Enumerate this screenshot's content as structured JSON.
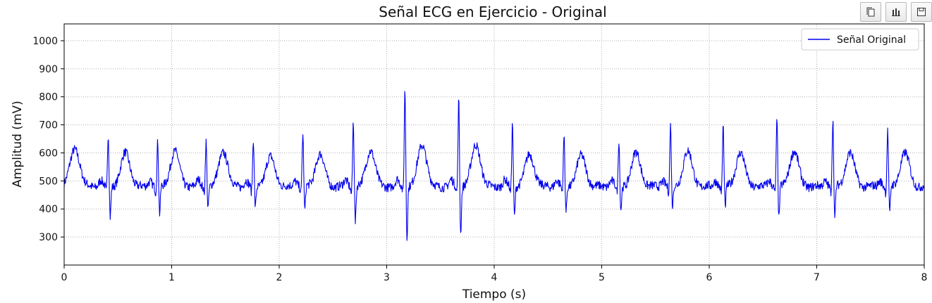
{
  "toolbar": {
    "icons": [
      "copy-icon",
      "chart-icon",
      "save-icon"
    ]
  },
  "chart_data": {
    "type": "line",
    "title": "Señal ECG en Ejercicio - Original",
    "xlabel": "Tiempo (s)",
    "ylabel": "Amplitud (mV)",
    "xlim": [
      0,
      8
    ],
    "ylim": [
      200,
      1060
    ],
    "xticks": [
      0,
      1,
      2,
      3,
      4,
      5,
      6,
      7,
      8
    ],
    "yticks": [
      300,
      400,
      500,
      600,
      700,
      800,
      900,
      1000
    ],
    "grid": true,
    "legend": {
      "position": "top-right",
      "entries": [
        "Señal Original"
      ]
    },
    "series": [
      {
        "name": "Señal Original",
        "color": "#0000ee",
        "baseline": 480,
        "beats": [
          {
            "r_time": 0.41,
            "r_peak": 667,
            "s_min": 367,
            "t_peak": 600
          },
          {
            "r_time": 0.87,
            "r_peak": 640,
            "s_min": 375,
            "t_peak": 605
          },
          {
            "r_time": 1.32,
            "r_peak": 645,
            "s_min": 405,
            "t_peak": 605
          },
          {
            "r_time": 1.76,
            "r_peak": 648,
            "s_min": 403,
            "t_peak": 585
          },
          {
            "r_time": 2.22,
            "r_peak": 664,
            "s_min": 390,
            "t_peak": 595
          },
          {
            "r_time": 2.69,
            "r_peak": 718,
            "s_min": 348,
            "t_peak": 610
          },
          {
            "r_time": 3.17,
            "r_peak": 835,
            "s_min": 293,
            "t_peak": 630
          },
          {
            "r_time": 3.67,
            "r_peak": 797,
            "s_min": 308,
            "t_peak": 630
          },
          {
            "r_time": 4.17,
            "r_peak": 708,
            "s_min": 372,
            "t_peak": 595
          },
          {
            "r_time": 4.65,
            "r_peak": 660,
            "s_min": 385,
            "t_peak": 590
          },
          {
            "r_time": 5.16,
            "r_peak": 646,
            "s_min": 393,
            "t_peak": 600
          },
          {
            "r_time": 5.64,
            "r_peak": 697,
            "s_min": 402,
            "t_peak": 605
          },
          {
            "r_time": 6.13,
            "r_peak": 697,
            "s_min": 397,
            "t_peak": 600
          },
          {
            "r_time": 6.63,
            "r_peak": 718,
            "s_min": 357,
            "t_peak": 605
          },
          {
            "r_time": 7.15,
            "r_peak": 717,
            "s_min": 355,
            "t_peak": 600
          },
          {
            "r_time": 7.66,
            "r_peak": 677,
            "s_min": 375,
            "t_peak": 600
          }
        ],
        "initial_t_wave": {
          "time": 0.1,
          "peak": 615
        }
      }
    ]
  }
}
